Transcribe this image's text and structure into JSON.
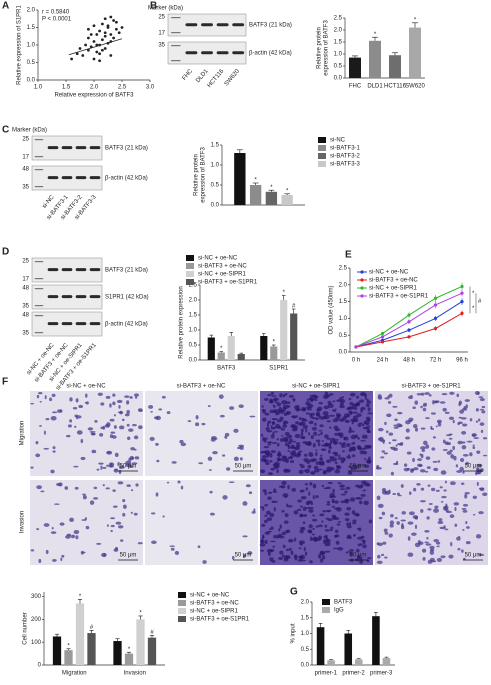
{
  "chart_data": [
    {
      "type": "scatter",
      "panel": "A",
      "annotations": [
        "r = 0.5840",
        "P < 0.0001"
      ],
      "xlabel": "Relative expression of BATF3",
      "ylabel": [
        "Relative expression of S1PR1"
      ],
      "x": [
        1.6,
        1.7,
        1.75,
        1.8,
        1.85,
        1.9,
        1.9,
        1.95,
        2.0,
        2.0,
        2.05,
        2.05,
        2.1,
        2.1,
        2.1,
        2.15,
        2.15,
        2.2,
        2.2,
        2.2,
        2.25,
        2.25,
        2.3,
        2.3,
        2.3,
        2.35,
        2.4,
        2.4,
        2.45,
        2.5,
        1.9,
        2.0,
        2.1,
        2.2,
        2.3,
        2.15,
        2.05,
        1.95,
        2.25,
        2.35
      ],
      "values": [
        0.6,
        0.75,
        0.9,
        0.7,
        1.0,
        0.85,
        1.2,
        0.95,
        1.1,
        0.6,
        1.3,
        0.8,
        1.4,
        1.0,
        0.55,
        1.15,
        1.6,
        1.25,
        0.9,
        1.75,
        1.05,
        1.5,
        1.3,
        0.7,
        1.8,
        1.2,
        1.45,
        1.65,
        1.35,
        1.5,
        1.45,
        1.55,
        0.75,
        1.35,
        1.1,
        0.85,
        1.0,
        1.3,
        1.55,
        1.7
      ],
      "fit": {
        "x": [
          1.55,
          2.5
        ],
        "y": [
          0.72,
          1.18
        ]
      },
      "color": "#222",
      "xlim": [
        1.0,
        3.0
      ],
      "xticks": [
        {
          "value": 1,
          "label": "1.0"
        },
        1.5,
        {
          "value": 2,
          "label": "2.0"
        },
        2.5,
        {
          "value": 3,
          "label": "3.0"
        }
      ],
      "ylim": [
        0,
        2
      ],
      "yticks": [
        {
          "value": 0,
          "label": "0.0"
        },
        0.5,
        {
          "value": 1,
          "label": "1.0"
        },
        1.5,
        {
          "value": 2,
          "label": "2.0"
        }
      ]
    },
    {
      "type": "bar",
      "panel": "B",
      "ylabel": [
        "Relative protein",
        "expression of BATF3"
      ],
      "categories": [
        "FHC",
        "DLD1",
        "HCT116",
        "SW620"
      ],
      "values": [
        0.85,
        1.55,
        0.95,
        2.1
      ],
      "errors": [
        0.07,
        0.15,
        0.1,
        0.2
      ],
      "marks": [
        null,
        "*",
        null,
        "*"
      ],
      "colors": [
        "#1a1a1a",
        "#8c8c8c",
        "#6e6e6e",
        "#a8a8a8"
      ],
      "ylim": [
        0,
        2.5
      ],
      "yticks": [
        {
          "value": 0,
          "label": "0.0"
        },
        0.5,
        {
          "value": 1,
          "label": "1.0"
        },
        1.5,
        {
          "value": 2,
          "label": "2.0"
        },
        2.5
      ]
    },
    {
      "type": "bar",
      "panel": "C",
      "ylabel": [
        "Relative protein",
        "expression of BATF3"
      ],
      "series": [
        {
          "name": "si-NC",
          "color": "#111",
          "values": [
            1.3
          ],
          "errors": [
            0.08
          ]
        },
        {
          "name": "si-BATF3-1",
          "color": "#8c8c8c",
          "values": [
            0.5
          ],
          "errors": [
            0.05
          ],
          "marks": [
            "*"
          ]
        },
        {
          "name": "si-BATF3-2",
          "color": "#666",
          "values": [
            0.33
          ],
          "errors": [
            0.04
          ],
          "marks": [
            "*"
          ]
        },
        {
          "name": "si-BATF3-3",
          "color": "#c8c8c8",
          "values": [
            0.25
          ],
          "errors": [
            0.03
          ],
          "marks": [
            "*"
          ]
        }
      ],
      "ylim": [
        0,
        1.5
      ],
      "yticks": [
        {
          "value": 0,
          "label": "0.0"
        },
        0.5,
        {
          "value": 1,
          "label": "1.0"
        },
        1.5
      ]
    },
    {
      "type": "bar",
      "panel": "D",
      "ylabel": [
        "Relative protein expression"
      ],
      "categories": [
        "BATF3",
        "S1PR1"
      ],
      "series": [
        {
          "name": "si-NC + oe-NC",
          "color": "#111",
          "values": [
            0.75,
            0.8
          ],
          "errors": [
            0.08,
            0.08
          ]
        },
        {
          "name": "si-BATF3 + oe-NC",
          "color": "#9a9a9a",
          "values": [
            0.25,
            0.45
          ],
          "errors": [
            0.03,
            0.05
          ],
          "marks": [
            "*",
            "*"
          ]
        },
        {
          "name": "si-NC + oe-SIPR1",
          "color": "#d0d0d0",
          "values": [
            0.8,
            2.0
          ],
          "errors": [
            0.12,
            0.15
          ],
          "marks": [
            null,
            "*"
          ]
        },
        {
          "name": "si-BATF3 + oe-S1PR1",
          "color": "#555",
          "values": [
            0.2,
            1.55
          ],
          "errors": [
            0.03,
            0.15
          ],
          "marks": [
            null,
            "#"
          ]
        }
      ],
      "ylim": [
        0,
        2.5
      ],
      "yticks": [
        {
          "value": 0,
          "label": "0.0"
        },
        0.5,
        {
          "value": 1,
          "label": "1.0"
        },
        1.5,
        {
          "value": 2,
          "label": "2.0"
        },
        2.5
      ]
    },
    {
      "type": "line",
      "panel": "E",
      "ylabel": [
        "OD value (450nm)"
      ],
      "categories": [
        "0 h",
        "24 h",
        "48 h",
        "72 h",
        "96 h"
      ],
      "series": [
        {
          "name": "si-NC + oe-NC",
          "color": "#1f3fd6",
          "values": [
            0.15,
            0.35,
            0.65,
            1.0,
            1.5
          ],
          "errors": [
            0.02,
            0.04,
            0.06,
            0.08,
            0.1
          ]
        },
        {
          "name": "si-BATF3 + oe-NC",
          "color": "#e02020",
          "values": [
            0.15,
            0.3,
            0.45,
            0.7,
            1.15
          ],
          "errors": [
            0.02,
            0.04,
            0.05,
            0.07,
            0.09
          ]
        },
        {
          "name": "si-NC + oe-SIPR1",
          "color": "#2db82d",
          "values": [
            0.15,
            0.55,
            1.1,
            1.6,
            1.95
          ],
          "errors": [
            0.02,
            0.05,
            0.08,
            0.1,
            0.12
          ]
        },
        {
          "name": "si-BATF3 + oe-S1PR1",
          "color": "#b040e0",
          "values": [
            0.15,
            0.45,
            0.9,
            1.4,
            1.75
          ],
          "errors": [
            0.02,
            0.05,
            0.07,
            0.1,
            0.1
          ]
        }
      ],
      "annotations": [
        "*",
        "*",
        "#"
      ],
      "ylim": [
        0,
        2.5
      ],
      "yticks": [
        {
          "value": 0,
          "label": "0.0"
        },
        0.5,
        {
          "value": 1,
          "label": "1.0"
        },
        1.5,
        {
          "value": 2,
          "label": "2.0"
        },
        2.5
      ]
    },
    {
      "type": "bar",
      "ylabel": [
        "Cell number"
      ],
      "categories": [
        "Migration",
        "Invasion"
      ],
      "series": [
        {
          "name": "si-NC + oe-NC",
          "color": "#111",
          "values": [
            125,
            105
          ],
          "errors": [
            10,
            10
          ]
        },
        {
          "name": "si-BATF3 + oe-NC",
          "color": "#9a9a9a",
          "values": [
            65,
            50
          ],
          "errors": [
            6,
            6
          ],
          "marks": [
            "*",
            "*"
          ]
        },
        {
          "name": "si-NC + oe-SIPR1",
          "color": "#d0d0d0",
          "values": [
            270,
            200
          ],
          "errors": [
            18,
            15
          ],
          "marks": [
            "*",
            "*"
          ]
        },
        {
          "name": "si-BATF3 + oe-S1PR1",
          "color": "#555",
          "values": [
            140,
            120
          ],
          "errors": [
            12,
            10
          ],
          "marks": [
            "#",
            "#"
          ]
        }
      ],
      "ylim": [
        0,
        320
      ],
      "yticks": [
        0,
        100,
        200,
        300
      ]
    },
    {
      "type": "bar",
      "panel": "G",
      "ylabel": [
        "% input"
      ],
      "categories": [
        "primer-1",
        "primer-2",
        "primer-3"
      ],
      "series": [
        {
          "name": "BATF3",
          "color": "#111",
          "values": [
            1.2,
            1.0,
            1.55
          ],
          "errors": [
            0.12,
            0.1,
            0.12
          ]
        },
        {
          "name": "IgG",
          "color": "#aaa",
          "values": [
            0.15,
            0.18,
            0.22
          ],
          "errors": [
            0.02,
            0.02,
            0.03
          ]
        }
      ],
      "ylim": [
        0,
        2
      ],
      "yticks": [
        {
          "value": 0,
          "label": "0.0"
        },
        0.5,
        {
          "value": 1,
          "label": "1.0"
        },
        1.5,
        {
          "value": 2,
          "label": "2.0"
        }
      ]
    }
  ],
  "blots": [
    {
      "marker_title": "Marker (kDa)",
      "lanes": [
        "FHC",
        "DLD1",
        "HCT116",
        "SW620"
      ],
      "rows": [
        {
          "name": "BATF3 (21 kDa)",
          "markers": [
            25,
            17
          ]
        },
        {
          "name": "β-actin (42 kDa)",
          "markers": [
            35
          ]
        }
      ]
    },
    {
      "marker_title": "Marker (kDa)",
      "lanes": [
        "si-NC",
        "si-BATF3-1",
        "si-BATF3-2",
        "si-BATF3-3"
      ],
      "rows": [
        {
          "name": "BATF3 (21 kDa)",
          "markers": [
            25,
            17
          ]
        },
        {
          "name": "β-actin (42 kDa)",
          "markers": [
            48,
            35
          ]
        }
      ]
    },
    {
      "lanes": [
        "si-NC + oe-NC",
        "si-BATF3 + oe-NC",
        "si-NC + oe-SIPR1",
        "si-BATF3 + oe-S1PR1"
      ],
      "rows": [
        {
          "name": "BATF3 (21 kDa)",
          "markers": [
            25,
            17
          ]
        },
        {
          "name": "S1PR1 (42 kDa)",
          "markers": [
            48,
            35
          ]
        },
        {
          "name": "β-actin (42 kDa)",
          "markers": [
            48,
            35
          ]
        }
      ]
    }
  ],
  "images": {
    "panel": "F",
    "columns": [
      "si-NC + oe-NC",
      "si-BATF3 + oe-NC",
      "si-NC + oe-SIPR1",
      "si-BATF3 + oe-S1PR1"
    ],
    "rows": [
      "Migration",
      "Invasion"
    ],
    "scale": "50 μm"
  }
}
